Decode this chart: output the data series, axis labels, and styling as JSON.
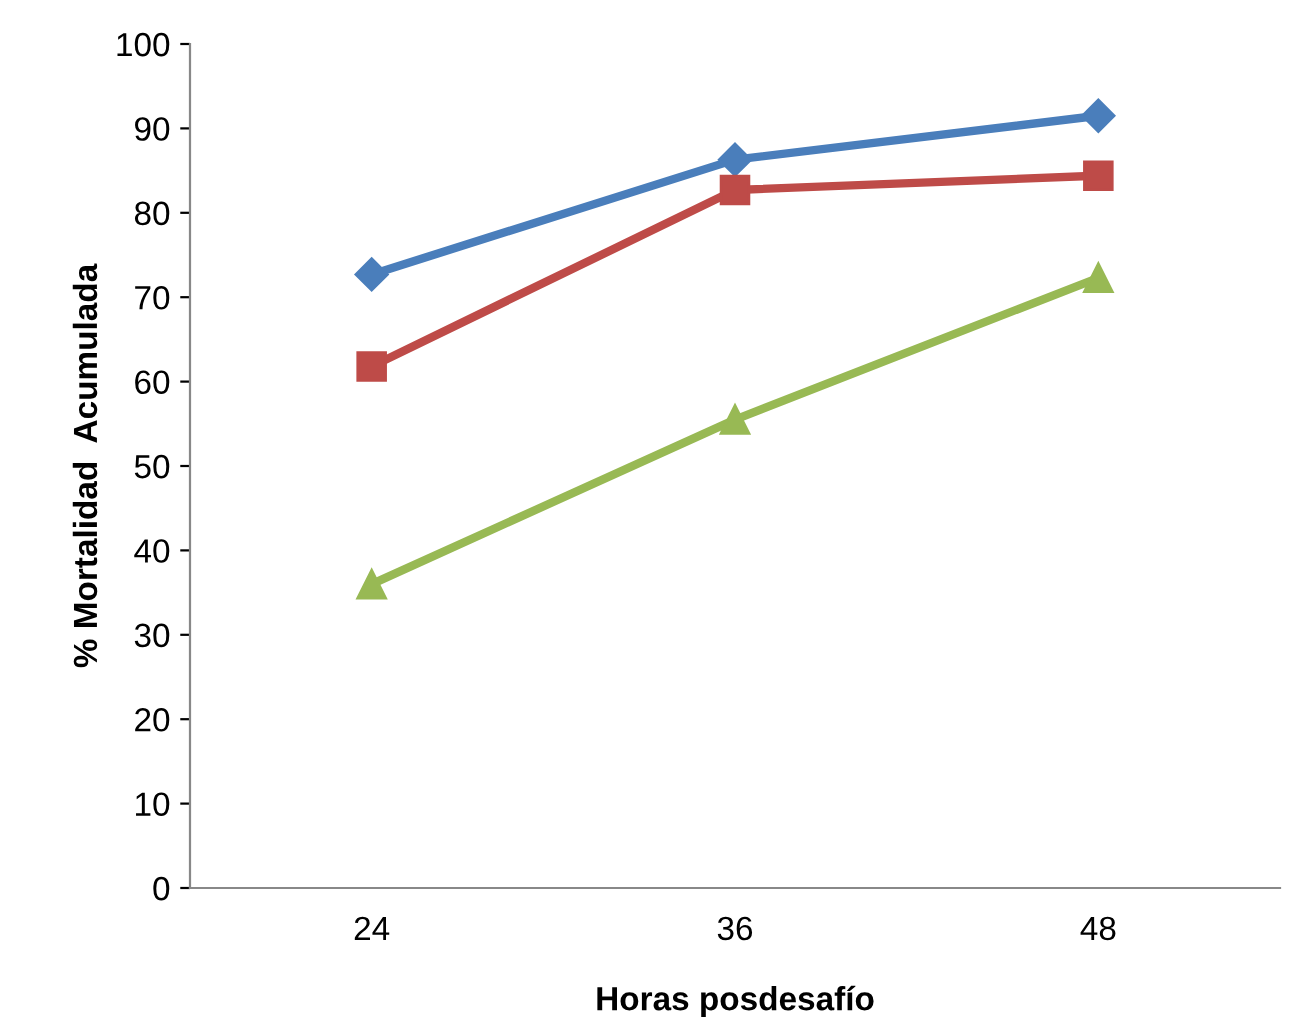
{
  "chart_data": {
    "type": "line",
    "xlabel": "Horas posdesafío",
    "ylabel": "% Mortalidad  Acumulada",
    "categories": [
      "24",
      "36",
      "48"
    ],
    "series": [
      {
        "color": "#4a7ebb",
        "marker": "diamond",
        "values": [
          72.7,
          86.3,
          91.5
        ]
      },
      {
        "color": "#be4b48",
        "marker": "square",
        "values": [
          61.8,
          82.7,
          84.4
        ]
      },
      {
        "color": "#98b954",
        "marker": "triangle",
        "values": [
          36.0,
          55.5,
          72.3
        ]
      }
    ],
    "ylim": [
      0,
      100
    ],
    "yticks": [
      0,
      10,
      20,
      30,
      40,
      50,
      60,
      70,
      80,
      90,
      100
    ],
    "grid": false,
    "line_style": "solid"
  }
}
